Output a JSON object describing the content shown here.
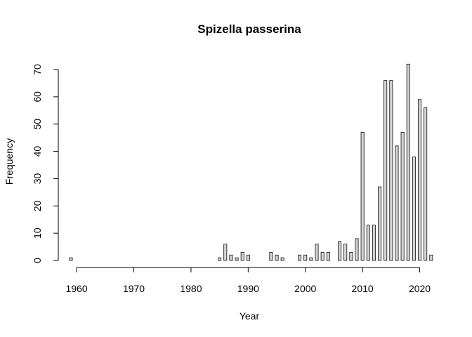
{
  "chart_data": {
    "type": "bar",
    "title": "Spizella passerina",
    "xlabel": "Year",
    "ylabel": "Frequency",
    "x": [
      1959,
      1960,
      1961,
      1962,
      1963,
      1964,
      1965,
      1966,
      1967,
      1968,
      1969,
      1970,
      1971,
      1972,
      1973,
      1974,
      1975,
      1976,
      1977,
      1978,
      1979,
      1980,
      1981,
      1982,
      1983,
      1984,
      1985,
      1986,
      1987,
      1988,
      1989,
      1990,
      1991,
      1992,
      1993,
      1994,
      1995,
      1996,
      1997,
      1998,
      1999,
      2000,
      2001,
      2002,
      2003,
      2004,
      2005,
      2006,
      2007,
      2008,
      2009,
      2010,
      2011,
      2012,
      2013,
      2014,
      2015,
      2016,
      2017,
      2018,
      2019,
      2020,
      2021,
      2022
    ],
    "values": [
      1,
      0,
      0,
      0,
      0,
      0,
      0,
      0,
      0,
      0,
      0,
      0,
      0,
      0,
      0,
      0,
      0,
      0,
      0,
      0,
      0,
      0,
      0,
      0,
      0,
      0,
      1,
      6,
      2,
      1,
      3,
      2,
      0,
      0,
      0,
      3,
      2,
      1,
      0,
      0,
      2,
      2,
      1,
      6,
      3,
      3,
      0,
      7,
      6,
      3,
      8,
      47,
      13,
      13,
      27,
      66,
      66,
      42,
      47,
      72,
      38,
      59,
      56,
      2
    ],
    "xlim": [
      1959,
      2022
    ],
    "ylim": [
      0,
      72
    ],
    "x_ticks": [
      "1960",
      "1970",
      "1980",
      "1990",
      "2000",
      "2010",
      "2020"
    ],
    "y_ticks": [
      "0",
      "10",
      "20",
      "30",
      "40",
      "50",
      "60",
      "70"
    ],
    "bar_fill": "#d3d3d3",
    "bar_stroke": "#000000",
    "grid": false,
    "legend": "none"
  }
}
